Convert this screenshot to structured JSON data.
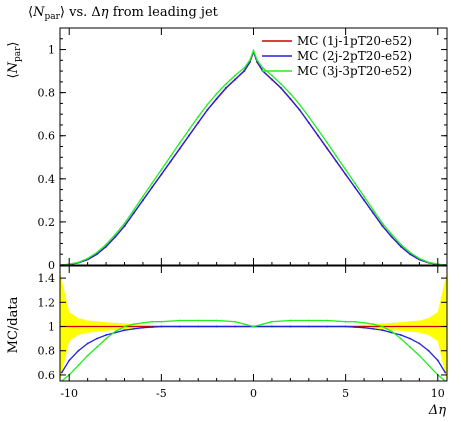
{
  "title": "⟨N_par⟩ vs. Δη from leading jet",
  "title_parts": {
    "pre": "⟨",
    "var": "N",
    "sub": "par",
    "post": "⟩ vs. Δ",
    "eta": "η",
    "tail": " from leading jet"
  },
  "colors": {
    "mc1": "#cc0000",
    "mc2": "#2222dd",
    "mc3": "#22ee22",
    "band": "#ffff00"
  },
  "chart_data": [
    {
      "type": "line",
      "panel": "main",
      "ylabel": "⟨N_par⟩",
      "xlim": [
        -10.5,
        10.5
      ],
      "ylim": [
        0,
        1.1
      ],
      "yticks": [
        0,
        0.2,
        0.4,
        0.6,
        0.8,
        1
      ],
      "ytick_labels": [
        "0",
        "0.2",
        "0.4",
        "0.6",
        "0.8",
        "1"
      ],
      "legend_position": "top-right",
      "series": [
        {
          "name": "MC (1j-1pT20-e52)",
          "color": "#cc0000",
          "x": [
            -10.4,
            -10,
            -9.5,
            -9,
            -8.5,
            -8,
            -7.5,
            -7,
            -6.5,
            -6,
            -5.5,
            -5,
            -4.5,
            -4,
            -3.5,
            -3,
            -2.5,
            -2,
            -1.5,
            -1,
            -0.5,
            -0.2,
            0,
            0.2,
            0.5,
            1,
            1.5,
            2,
            2.5,
            3,
            3.5,
            4,
            4.5,
            5,
            5.5,
            6,
            6.5,
            7,
            7.5,
            8,
            8.5,
            9,
            9.5,
            10,
            10.4
          ],
          "y": [
            0.0,
            0.003,
            0.01,
            0.025,
            0.05,
            0.085,
            0.13,
            0.18,
            0.24,
            0.3,
            0.36,
            0.42,
            0.48,
            0.54,
            0.6,
            0.66,
            0.72,
            0.77,
            0.82,
            0.86,
            0.9,
            0.94,
            0.99,
            0.94,
            0.9,
            0.86,
            0.82,
            0.77,
            0.72,
            0.66,
            0.6,
            0.54,
            0.48,
            0.42,
            0.36,
            0.3,
            0.24,
            0.18,
            0.13,
            0.085,
            0.05,
            0.025,
            0.01,
            0.003,
            0.0
          ]
        },
        {
          "name": "MC (2j-2pT20-e52)",
          "color": "#2222dd",
          "x": [
            -10.4,
            -10,
            -9.5,
            -9,
            -8.5,
            -8,
            -7.5,
            -7,
            -6.5,
            -6,
            -5.5,
            -5,
            -4.5,
            -4,
            -3.5,
            -3,
            -2.5,
            -2,
            -1.5,
            -1,
            -0.5,
            -0.2,
            0,
            0.2,
            0.5,
            1,
            1.5,
            2,
            2.5,
            3,
            3.5,
            4,
            4.5,
            5,
            5.5,
            6,
            6.5,
            7,
            7.5,
            8,
            8.5,
            9,
            9.5,
            10,
            10.4
          ],
          "y": [
            0.0,
            0.003,
            0.01,
            0.025,
            0.05,
            0.086,
            0.131,
            0.181,
            0.241,
            0.301,
            0.361,
            0.421,
            0.481,
            0.541,
            0.601,
            0.661,
            0.72,
            0.772,
            0.822,
            0.862,
            0.902,
            0.942,
            0.99,
            0.942,
            0.902,
            0.862,
            0.822,
            0.772,
            0.72,
            0.661,
            0.601,
            0.541,
            0.481,
            0.421,
            0.361,
            0.301,
            0.241,
            0.181,
            0.131,
            0.086,
            0.05,
            0.025,
            0.01,
            0.003,
            0.0
          ]
        },
        {
          "name": "MC (3j-3pT20-e52)",
          "color": "#22ee22",
          "x": [
            -10.4,
            -10,
            -9.5,
            -9,
            -8.5,
            -8,
            -7.5,
            -7,
            -6.5,
            -6,
            -5.5,
            -5,
            -4.5,
            -4,
            -3.5,
            -3,
            -2.5,
            -2,
            -1.5,
            -1,
            -0.5,
            -0.2,
            0,
            0.2,
            0.5,
            1,
            1.5,
            2,
            2.5,
            3,
            3.5,
            4,
            4.5,
            5,
            5.5,
            6,
            6.5,
            7,
            7.5,
            8,
            8.5,
            9,
            9.5,
            10,
            10.4
          ],
          "y": [
            0.0,
            0.004,
            0.012,
            0.03,
            0.058,
            0.095,
            0.142,
            0.193,
            0.255,
            0.318,
            0.38,
            0.443,
            0.505,
            0.567,
            0.628,
            0.688,
            0.745,
            0.795,
            0.84,
            0.88,
            0.915,
            0.95,
            0.995,
            0.95,
            0.915,
            0.88,
            0.84,
            0.795,
            0.745,
            0.688,
            0.628,
            0.567,
            0.505,
            0.443,
            0.38,
            0.318,
            0.255,
            0.193,
            0.142,
            0.095,
            0.058,
            0.03,
            0.012,
            0.004,
            0.0
          ]
        }
      ]
    },
    {
      "type": "line",
      "panel": "ratio",
      "xlabel": "Δη",
      "ylabel": "MC/data",
      "xlim": [
        -10.5,
        10.5
      ],
      "ylim": [
        0.55,
        1.5
      ],
      "xticks": [
        -10,
        -5,
        0,
        5,
        10
      ],
      "xtick_labels": [
        "-10",
        "-5",
        "0",
        "5",
        "10"
      ],
      "yticks": [
        0.6,
        0.8,
        1,
        1.2,
        1.4
      ],
      "ytick_labels": [
        "0.6",
        "0.8",
        "1",
        "1.2",
        "1.4"
      ],
      "band": {
        "color": "#ffff00",
        "x": [
          -10.5,
          -10,
          -9.5,
          -9,
          -8,
          -7,
          -6,
          -5,
          0,
          5,
          6,
          7,
          8,
          9,
          9.5,
          10,
          10.5
        ],
        "half_width": [
          0.45,
          0.12,
          0.07,
          0.05,
          0.035,
          0.025,
          0.015,
          0.01,
          0.01,
          0.01,
          0.015,
          0.025,
          0.035,
          0.05,
          0.07,
          0.12,
          0.45
        ]
      },
      "series": [
        {
          "name": "MC (1j-1pT20-e52)",
          "color": "#cc0000",
          "x": [
            -10.5,
            10.5
          ],
          "y": [
            1.0,
            1.0
          ]
        },
        {
          "name": "MC (2j-2pT20-e52)",
          "color": "#2222dd",
          "x": [
            -10.4,
            -10,
            -9.5,
            -9,
            -8.5,
            -8,
            -7.5,
            -7,
            -6.5,
            -6,
            -5.5,
            -5,
            -4,
            -3,
            -2,
            -1,
            0,
            1,
            2,
            3,
            4,
            5,
            5.5,
            6,
            6.5,
            7,
            7.5,
            8,
            8.5,
            9,
            9.5,
            10,
            10.4
          ],
          "y": [
            0.62,
            0.72,
            0.8,
            0.86,
            0.9,
            0.93,
            0.95,
            0.97,
            0.98,
            0.99,
            0.995,
            1.0,
            1.0,
            1.0,
            1.0,
            1.0,
            1.0,
            1.0,
            1.0,
            1.0,
            1.0,
            1.0,
            0.995,
            0.99,
            0.98,
            0.97,
            0.95,
            0.93,
            0.9,
            0.86,
            0.8,
            0.72,
            0.62
          ]
        },
        {
          "name": "MC (3j-3pT20-e52)",
          "color": "#22ee22",
          "x": [
            -10.4,
            -10,
            -9.5,
            -9,
            -8.5,
            -8,
            -7.5,
            -7,
            -6.5,
            -6,
            -5.5,
            -5,
            -4,
            -3,
            -2,
            -1,
            -0.5,
            0,
            0.5,
            1,
            2,
            3,
            4,
            5,
            5.5,
            6,
            6.5,
            7,
            7.5,
            8,
            8.5,
            9,
            9.5,
            10,
            10.4
          ],
          "y": [
            0.55,
            0.6,
            0.68,
            0.76,
            0.83,
            0.9,
            0.96,
            1.0,
            1.02,
            1.03,
            1.04,
            1.04,
            1.05,
            1.05,
            1.05,
            1.04,
            1.02,
            1.0,
            1.02,
            1.04,
            1.05,
            1.05,
            1.05,
            1.04,
            1.04,
            1.03,
            1.02,
            1.0,
            0.96,
            0.9,
            0.83,
            0.76,
            0.68,
            0.6,
            0.55
          ]
        }
      ]
    }
  ]
}
